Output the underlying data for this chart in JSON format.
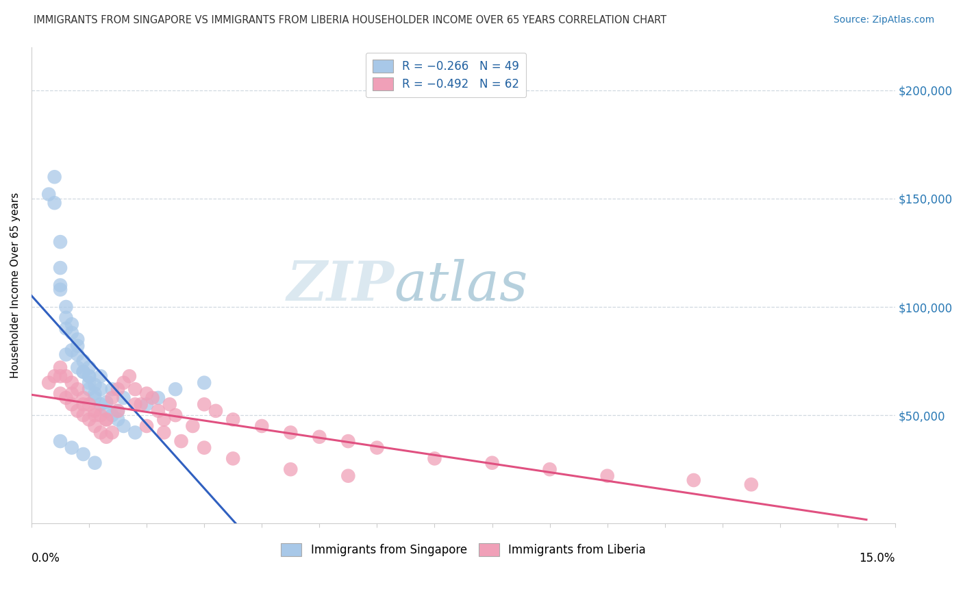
{
  "title": "IMMIGRANTS FROM SINGAPORE VS IMMIGRANTS FROM LIBERIA HOUSEHOLDER INCOME OVER 65 YEARS CORRELATION CHART",
  "source": "Source: ZipAtlas.com",
  "ylabel": "Householder Income Over 65 years",
  "xlim": [
    0.0,
    15.0
  ],
  "ylim": [
    0,
    220000
  ],
  "yticks": [
    50000,
    100000,
    150000,
    200000
  ],
  "ytick_labels": [
    "$50,000",
    "$100,000",
    "$150,000",
    "$200,000"
  ],
  "color_singapore": "#a8c8e8",
  "color_liberia": "#f0a0b8",
  "color_singapore_line": "#3060c0",
  "color_liberia_line": "#e05080",
  "color_singapore_dash": "#90b8d8",
  "watermark_zip": "ZIP",
  "watermark_atlas": "atlas",
  "singapore_x": [
    0.3,
    0.4,
    0.5,
    0.5,
    0.5,
    0.6,
    0.6,
    0.7,
    0.7,
    0.8,
    0.8,
    0.9,
    0.9,
    1.0,
    1.0,
    1.0,
    1.1,
    1.1,
    1.2,
    1.3,
    1.4,
    1.5,
    1.6,
    1.8,
    2.0,
    2.2,
    2.5,
    3.0,
    0.4,
    0.6,
    0.8,
    1.0,
    1.2,
    1.4,
    1.6,
    0.5,
    0.7,
    0.9,
    1.1,
    1.3,
    1.5,
    0.6,
    0.8,
    1.0,
    1.2,
    0.5,
    0.7,
    0.9,
    1.1
  ],
  "singapore_y": [
    152000,
    148000,
    130000,
    118000,
    108000,
    100000,
    95000,
    92000,
    88000,
    82000,
    78000,
    75000,
    70000,
    68000,
    65000,
    62000,
    60000,
    58000,
    55000,
    52000,
    50000,
    48000,
    45000,
    42000,
    55000,
    58000,
    62000,
    65000,
    160000,
    90000,
    85000,
    72000,
    68000,
    62000,
    58000,
    110000,
    80000,
    70000,
    64000,
    56000,
    52000,
    78000,
    72000,
    68000,
    62000,
    38000,
    35000,
    32000,
    28000
  ],
  "liberia_x": [
    0.3,
    0.4,
    0.5,
    0.5,
    0.6,
    0.6,
    0.7,
    0.7,
    0.8,
    0.8,
    0.9,
    0.9,
    1.0,
    1.0,
    1.1,
    1.1,
    1.2,
    1.2,
    1.3,
    1.3,
    1.4,
    1.4,
    1.5,
    1.6,
    1.7,
    1.8,
    1.9,
    2.0,
    2.1,
    2.2,
    2.3,
    2.4,
    2.5,
    2.8,
    3.0,
    3.2,
    3.5,
    4.0,
    4.5,
    5.0,
    5.5,
    6.0,
    7.0,
    8.0,
    9.0,
    10.0,
    11.5,
    12.5,
    0.5,
    0.7,
    0.9,
    1.1,
    1.3,
    1.5,
    1.8,
    2.0,
    2.3,
    2.6,
    3.0,
    3.5,
    4.5,
    5.5
  ],
  "liberia_y": [
    65000,
    68000,
    72000,
    60000,
    68000,
    58000,
    65000,
    55000,
    62000,
    52000,
    58000,
    50000,
    55000,
    48000,
    52000,
    45000,
    50000,
    42000,
    48000,
    40000,
    58000,
    42000,
    62000,
    65000,
    68000,
    62000,
    55000,
    60000,
    58000,
    52000,
    48000,
    55000,
    50000,
    45000,
    55000,
    52000,
    48000,
    45000,
    42000,
    40000,
    38000,
    35000,
    30000,
    28000,
    25000,
    22000,
    20000,
    18000,
    68000,
    60000,
    55000,
    50000,
    48000,
    52000,
    55000,
    45000,
    42000,
    38000,
    35000,
    30000,
    25000,
    22000
  ]
}
